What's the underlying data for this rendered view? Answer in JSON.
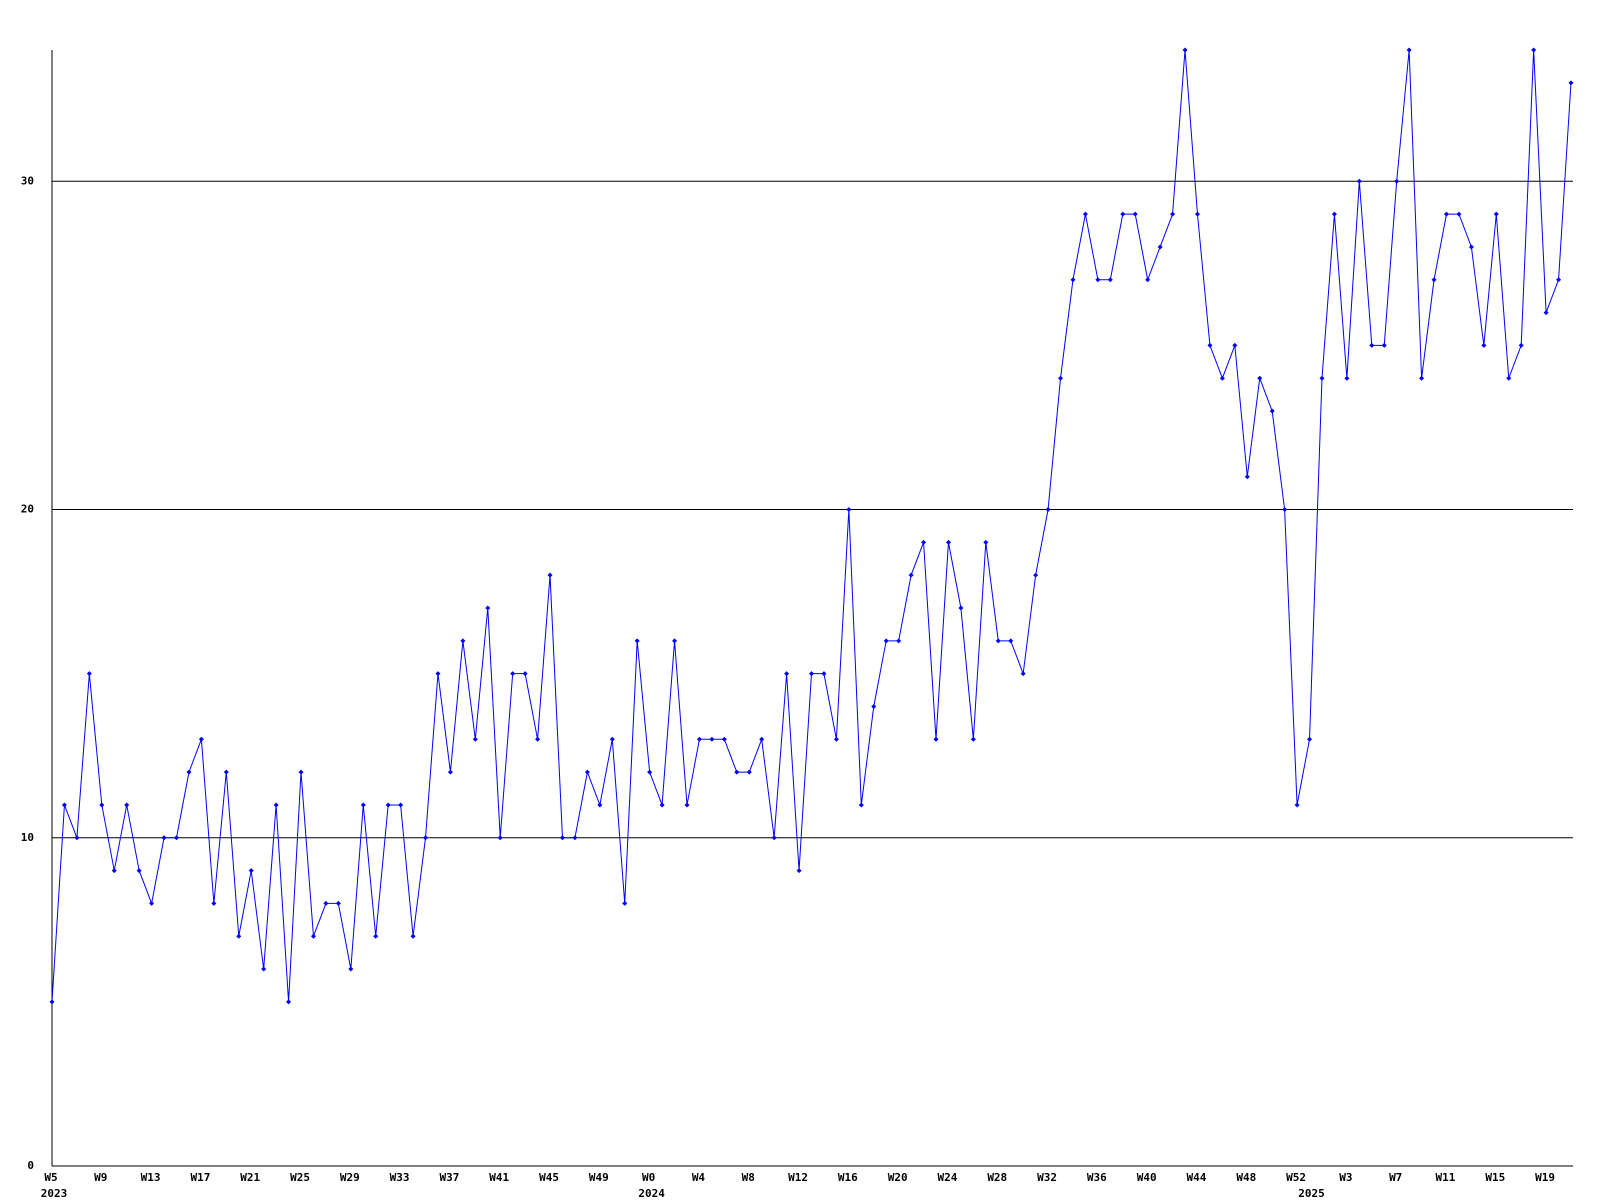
{
  "chart_data": {
    "type": "line",
    "categories": [
      "W5",
      null,
      null,
      null,
      "W9",
      null,
      null,
      null,
      "W13",
      null,
      null,
      null,
      "W17",
      null,
      null,
      null,
      "W21",
      null,
      null,
      null,
      "W25",
      null,
      null,
      null,
      "W29",
      null,
      null,
      null,
      "W33",
      null,
      null,
      null,
      "W37",
      null,
      null,
      null,
      "W41",
      null,
      null,
      null,
      "W45",
      null,
      null,
      null,
      "W49",
      null,
      null,
      null,
      "W0",
      null,
      null,
      null,
      "W4",
      null,
      null,
      null,
      "W8",
      null,
      null,
      null,
      "W12",
      null,
      null,
      null,
      "W16",
      null,
      null,
      null,
      "W20",
      null,
      null,
      null,
      "W24",
      null,
      null,
      null,
      "W28",
      null,
      null,
      null,
      "W32",
      null,
      null,
      null,
      "W36",
      null,
      null,
      null,
      "W40",
      null,
      null,
      null,
      "W44",
      null,
      null,
      null,
      "W48",
      null,
      null,
      null,
      "W52",
      null,
      null,
      null,
      "W3",
      null,
      null,
      null,
      "W7",
      null,
      null,
      null,
      "W11",
      null,
      null,
      null,
      "W15",
      null,
      null,
      null,
      "W19",
      null,
      null
    ],
    "years": [
      "2023",
      null,
      null,
      null,
      null,
      null,
      null,
      null,
      null,
      null,
      null,
      null,
      null,
      null,
      null,
      null,
      null,
      null,
      null,
      null,
      null,
      null,
      null,
      null,
      null,
      null,
      null,
      null,
      null,
      null,
      null,
      null,
      null,
      null,
      null,
      null,
      null,
      null,
      null,
      null,
      null,
      null,
      null,
      null,
      null,
      null,
      null,
      null,
      "2024",
      null,
      null,
      null,
      null,
      null,
      null,
      null,
      null,
      null,
      null,
      null,
      null,
      null,
      null,
      null,
      null,
      null,
      null,
      null,
      null,
      null,
      null,
      null,
      null,
      null,
      null,
      null,
      null,
      null,
      null,
      null,
      null,
      null,
      null,
      null,
      null,
      null,
      null,
      null,
      null,
      null,
      null,
      null,
      null,
      null,
      null,
      null,
      null,
      null,
      null,
      null,
      null,
      "2025",
      null,
      null,
      null,
      null,
      null,
      null,
      null,
      null,
      null,
      null,
      null,
      null,
      null,
      null,
      null,
      null,
      null,
      null,
      null,
      null,
      null
    ],
    "series": [
      {
        "color": "#0000ff",
        "values": [
          5,
          11,
          10,
          15,
          11,
          9,
          11,
          9,
          8,
          10,
          10,
          12,
          13,
          8,
          12,
          7,
          9,
          6,
          11,
          5,
          12,
          7,
          8,
          8,
          6,
          11,
          7,
          11,
          11,
          7,
          10,
          15,
          12,
          16,
          13,
          17,
          10,
          15,
          15,
          13,
          18,
          10,
          10,
          12,
          11,
          13,
          8,
          16,
          12,
          11,
          16,
          11,
          13,
          13,
          13,
          12,
          12,
          13,
          10,
          15,
          9,
          15,
          15,
          13,
          20,
          11,
          14,
          16,
          16,
          18,
          19,
          13,
          19,
          17,
          13,
          19,
          16,
          16,
          15,
          18,
          20,
          24,
          27,
          29,
          27,
          27,
          29,
          29,
          27,
          28,
          29,
          34,
          29,
          25,
          24,
          25,
          21,
          24,
          23,
          20,
          11,
          13,
          24,
          29,
          24,
          30,
          25,
          25,
          30,
          34,
          24,
          27,
          29,
          29,
          28,
          25,
          29,
          24,
          25,
          34,
          26,
          27,
          33
        ]
      }
    ],
    "ylim": [
      0,
      34
    ],
    "yticks": [
      0,
      10,
      20,
      30
    ],
    "grid": true
  }
}
